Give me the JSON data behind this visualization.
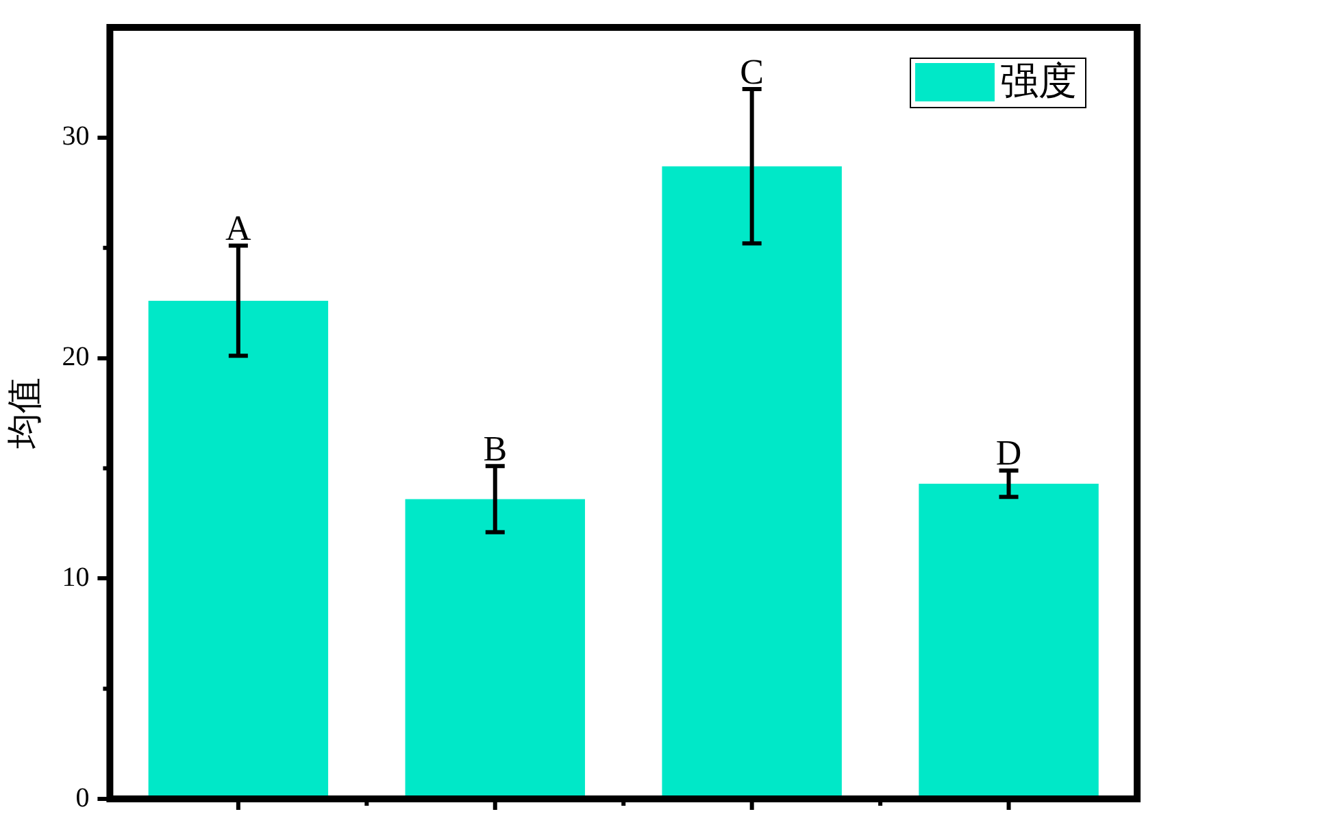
{
  "chart_data": {
    "type": "bar",
    "ylabel": "均值",
    "categories": [
      null,
      null,
      null,
      null
    ],
    "series": [
      {
        "name": "强度",
        "color": "#00e8c8",
        "values": [
          22.6,
          13.6,
          28.7,
          14.3
        ],
        "errors": [
          2.5,
          1.5,
          3.5,
          0.6
        ]
      }
    ],
    "ylim": [
      0,
      35
    ],
    "yticks": [
      0,
      10,
      20,
      30
    ],
    "grid": false,
    "legend": "top right",
    "annotations": [
      "A",
      "B",
      "C",
      "D"
    ]
  }
}
